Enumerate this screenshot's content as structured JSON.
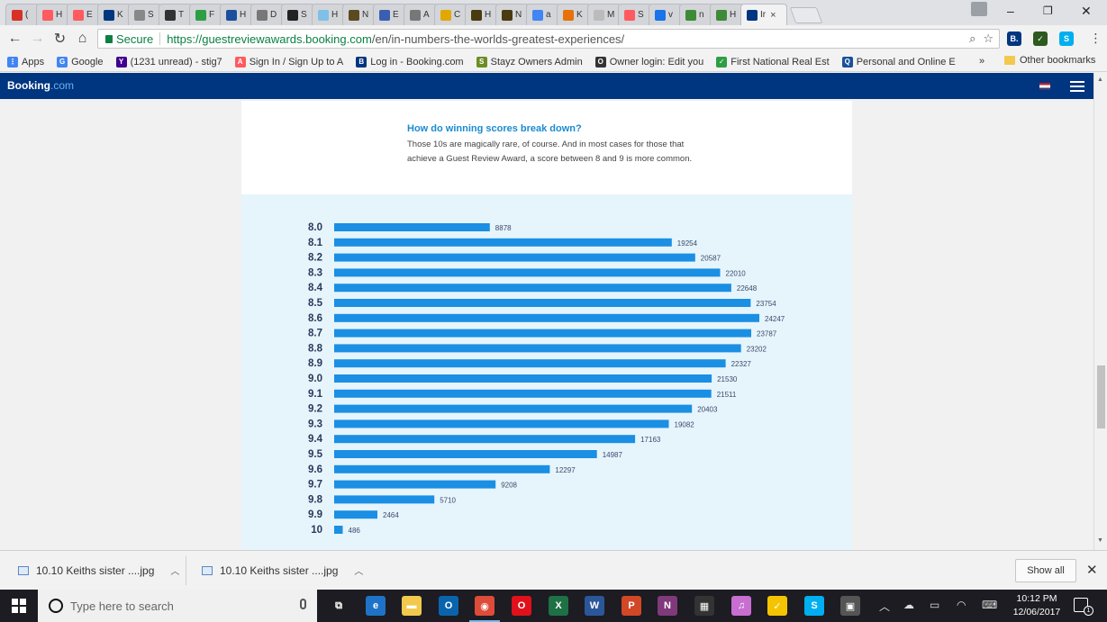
{
  "browser": {
    "tabs": [
      {
        "label": "(",
        "icon": "gmail-icon",
        "color": "#d93025"
      },
      {
        "label": "H",
        "icon": "airbnb-icon",
        "color": "#ff5a5f"
      },
      {
        "label": "E",
        "icon": "airbnb-icon",
        "color": "#ff5a5f"
      },
      {
        "label": "K",
        "icon": "booking-icon",
        "color": "#003580"
      },
      {
        "label": "S",
        "icon": "loading-icon",
        "color": "#888888"
      },
      {
        "label": "T",
        "icon": "tripadvisor-icon",
        "color": "#333333"
      },
      {
        "label": "F",
        "icon": "checkmark-icon",
        "color": "#2e9e44"
      },
      {
        "label": "H",
        "icon": "q-icon",
        "color": "#1b4f9c"
      },
      {
        "label": "D",
        "icon": "document-icon",
        "color": "#777777"
      },
      {
        "label": "S",
        "icon": "square-icon",
        "color": "#222222"
      },
      {
        "label": "H",
        "icon": "hd-icon",
        "color": "#7ec0e8"
      },
      {
        "label": "N",
        "icon": "house-icon",
        "color": "#5a4a1f"
      },
      {
        "label": "E",
        "icon": "list-icon",
        "color": "#3a5fb0"
      },
      {
        "label": "A",
        "icon": "document-icon",
        "color": "#777777"
      },
      {
        "label": "C",
        "icon": "pencil-icon",
        "color": "#e0a800"
      },
      {
        "label": "H",
        "icon": "building-icon",
        "color": "#4a3a10"
      },
      {
        "label": "N",
        "icon": "building-icon",
        "color": "#4a3a10"
      },
      {
        "label": "a",
        "icon": "google-icon",
        "color": "#4285f4"
      },
      {
        "label": "K",
        "icon": "flag-icon",
        "color": "#e8710a"
      },
      {
        "label": "M",
        "icon": "blank-icon",
        "color": "#bbbbbb"
      },
      {
        "label": "S",
        "icon": "airbnb-icon",
        "color": "#ff5a5f"
      },
      {
        "label": "v",
        "icon": "loading-icon",
        "color": "#1a73e8"
      },
      {
        "label": "n",
        "icon": "plant-icon",
        "color": "#3d8b37"
      },
      {
        "label": "H",
        "icon": "plant-icon",
        "color": "#3d8b37"
      }
    ],
    "active_tab": {
      "label": "Ir",
      "close": "×"
    },
    "window_controls": {
      "minimize": "–",
      "restore": "❐",
      "close": "✕"
    },
    "secure_label": "Secure",
    "url_host": "https://guestreviewawards.booking.com",
    "url_path": "/en/in-numbers-the-worlds-greatest-experiences/",
    "extensions": [
      {
        "label": "B.",
        "color": "#003580",
        "name": "booking-extension-icon"
      },
      {
        "label": "✓",
        "color": "#2d5a1e",
        "name": "checklist-extension-icon"
      },
      {
        "label": "S",
        "color": "#00aff0",
        "name": "skype-extension-icon"
      }
    ],
    "bookmarks": [
      {
        "label": "Apps",
        "icon": "apps-icon",
        "color": "#4285f4",
        "glyph": "⋮"
      },
      {
        "label": "Google",
        "icon": "google-icon",
        "color": "#4285f4",
        "glyph": "G"
      },
      {
        "label": "(1231 unread) - stig7",
        "icon": "yahoo-icon",
        "color": "#400090",
        "glyph": "Y"
      },
      {
        "label": "Sign In / Sign Up to A",
        "icon": "airbnb-icon",
        "color": "#ff5a5f",
        "glyph": "A"
      },
      {
        "label": "Log in - Booking.com",
        "icon": "booking-icon",
        "color": "#003580",
        "glyph": "B"
      },
      {
        "label": "Stayz Owners Admin",
        "icon": "stayz-icon",
        "color": "#6b8e23",
        "glyph": "S"
      },
      {
        "label": "Owner login: Edit you",
        "icon": "tripadvisor-icon",
        "color": "#333333",
        "glyph": "O"
      },
      {
        "label": "First National Real Est",
        "icon": "checkmark-icon",
        "color": "#2e9e44",
        "glyph": "✓"
      },
      {
        "label": "Personal and Online E",
        "icon": "q-icon",
        "color": "#1b4f9c",
        "glyph": "Q"
      }
    ],
    "bookmarks_more": "»",
    "other_bookmarks": "Other bookmarks"
  },
  "site": {
    "logo_main": "Booking",
    "logo_suffix": ".com"
  },
  "article": {
    "title": "How do winning scores break down?",
    "body": "Those 10s are magically rare, of course. And in most cases for those that achieve a Guest Review Award, a score between 8 and 9 is more common."
  },
  "chart_data": {
    "type": "bar",
    "orientation": "horizontal",
    "bar_color": "#1a8fe3",
    "categories": [
      "8.0",
      "8.1",
      "8.2",
      "8.3",
      "8.4",
      "8.5",
      "8.6",
      "8.7",
      "8.8",
      "8.9",
      "9.0",
      "9.1",
      "9.2",
      "9.3",
      "9.4",
      "9.5",
      "9.6",
      "9.7",
      "9.8",
      "9.9",
      "10"
    ],
    "values": [
      8878,
      19254,
      20587,
      22010,
      22648,
      23754,
      24247,
      23787,
      23202,
      22327,
      21530,
      21511,
      20403,
      19082,
      17163,
      14987,
      12297,
      9208,
      5710,
      2464,
      486
    ],
    "title": "",
    "xlabel": "",
    "ylabel": ""
  },
  "downloads": {
    "items": [
      {
        "label": "10.10 Keiths sister ....jpg"
      },
      {
        "label": "10.10 Keiths sister ....jpg"
      }
    ],
    "show_all": "Show all",
    "close": "✕"
  },
  "taskbar": {
    "search_placeholder": "Type here to search",
    "apps": [
      {
        "name": "task-view-icon",
        "label": "⧉",
        "color": "#1c1c22"
      },
      {
        "name": "edge-icon",
        "label": "e",
        "color": "#1e73c8"
      },
      {
        "name": "file-explorer-icon",
        "label": "▬",
        "color": "#f2c94c"
      },
      {
        "name": "outlook-icon",
        "label": "O",
        "color": "#0a64ad"
      },
      {
        "name": "chrome-icon",
        "label": "◉",
        "color": "#dd4b39"
      },
      {
        "name": "opera-icon",
        "label": "O",
        "color": "#e0111b"
      },
      {
        "name": "excel-icon",
        "label": "X",
        "color": "#1e7145"
      },
      {
        "name": "word-icon",
        "label": "W",
        "color": "#2b579a"
      },
      {
        "name": "powerpoint-icon",
        "label": "P",
        "color": "#d24726"
      },
      {
        "name": "onenote-icon",
        "label": "N",
        "color": "#80397b"
      },
      {
        "name": "store-icon",
        "label": "▦",
        "color": "#333333"
      },
      {
        "name": "itunes-icon",
        "label": "♫",
        "color": "#c86ed1"
      },
      {
        "name": "norton-icon",
        "label": "✓",
        "color": "#f5c400"
      },
      {
        "name": "skype-icon",
        "label": "S",
        "color": "#00aff0"
      },
      {
        "name": "photos-icon",
        "label": "▣",
        "color": "#555555"
      }
    ],
    "time": "10:12 PM",
    "date": "12/06/2017",
    "notification_count": "1"
  }
}
